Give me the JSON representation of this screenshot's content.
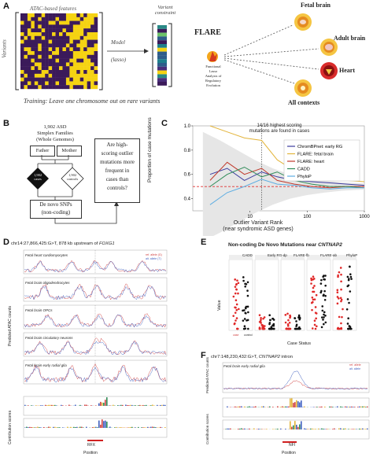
{
  "panelA": {
    "letter": "A",
    "features_label": "ATAC-based features",
    "variants_label": "Variants",
    "model_label": "Model",
    "model_sub": "(lasso)",
    "constraint_label": "Variant constraint",
    "flare_title": "FLARE",
    "flare_desc": [
      "Functional",
      "Lasso",
      "Analysis of",
      "Regulatory",
      "Evolution"
    ],
    "contexts": [
      "Fetal brain",
      "Adult brain",
      "Heart",
      "All contexts"
    ],
    "training": "Training: Leave one chromosome out on rare variants"
  },
  "panelB": {
    "letter": "B",
    "cohort": [
      "1,902 ASD",
      "Simplex Families",
      "(Whole Genomes)"
    ],
    "father": "Father",
    "mother": "Mother",
    "cases": [
      "1,902",
      "cases"
    ],
    "controls": [
      "1,902",
      "controls"
    ],
    "snps": [
      "De novo SNPs",
      "(non-coding)"
    ],
    "question": [
      "Are high-",
      "scoring outlier",
      "mutations more",
      "frequent in",
      "cases than",
      "controls?"
    ]
  },
  "panelC": {
    "letter": "C",
    "annotation": [
      "14/16 highest scoring",
      "mutations are found in cases"
    ],
    "ylabel": "Proportion of case mutations",
    "xlabel": [
      "Outlier Variant Rank",
      "(near syndromic ASD genes)"
    ],
    "chart_data": {
      "type": "line",
      "xscale": "log",
      "xlim": [
        1,
        1000
      ],
      "ylim": [
        0.3,
        1.0
      ],
      "x_ticks": [
        "10",
        "100",
        "1000"
      ],
      "y_ticks": [
        "0.4",
        "0.6",
        "0.8",
        "1.0"
      ],
      "legend_position": "center-right",
      "reference_line": 0.5,
      "series": [
        {
          "name": "ChromBPnet: early RG",
          "color": "#3b3b9e",
          "x": [
            2,
            4,
            8,
            16,
            30,
            60,
            120,
            250,
            500,
            1000
          ],
          "values": [
            0.6,
            0.65,
            0.55,
            0.62,
            0.58,
            0.55,
            0.54,
            0.53,
            0.52,
            0.51
          ]
        },
        {
          "name": "FLARE: fetal brain",
          "color": "#e3b43a",
          "x": [
            2,
            4,
            8,
            16,
            30,
            60,
            120,
            250,
            500,
            1000
          ],
          "values": [
            1.0,
            0.95,
            0.9,
            0.88,
            0.72,
            0.63,
            0.58,
            0.56,
            0.55,
            0.54
          ]
        },
        {
          "name": "FLARE: heart",
          "color": "#c0392b",
          "x": [
            2,
            4,
            8,
            16,
            30,
            60,
            120,
            250,
            500,
            1000
          ],
          "values": [
            0.55,
            0.7,
            0.6,
            0.65,
            0.55,
            0.52,
            0.5,
            0.49,
            0.5,
            0.5
          ]
        },
        {
          "name": "CADD",
          "color": "#2e8b57",
          "x": [
            2,
            4,
            8,
            16,
            30,
            60,
            120,
            250,
            500,
            1000
          ],
          "values": [
            0.5,
            0.6,
            0.66,
            0.58,
            0.62,
            0.55,
            0.52,
            0.5,
            0.5,
            0.49
          ]
        },
        {
          "name": "PhyloP",
          "color": "#5dade2",
          "x": [
            2,
            4,
            8,
            16,
            30,
            60,
            120,
            250,
            500,
            1000
          ],
          "values": [
            0.35,
            0.45,
            0.5,
            0.56,
            0.52,
            0.51,
            0.49,
            0.48,
            0.49,
            0.49
          ]
        }
      ]
    }
  },
  "panelD": {
    "letter": "D",
    "title_prefix": "chr14:27,866,425:G>T, 878 kb upstream of ",
    "gene": "FOXG1",
    "tracks": [
      "Fetal heart cardiomyocytes",
      "Fetal brain oligodendrocytes",
      "Fetal brain OPCs",
      "Fetal brain circulatory neurons",
      "Fetal brain early radial glia"
    ],
    "ylabel": "Predicted ATAC counts",
    "contrib_label": "Contribution scores",
    "motif": "RFX",
    "xlabel": "Position",
    "legend": [
      "ref. allele (G)",
      "alt. allele (T)"
    ]
  },
  "panelE": {
    "letter": "E",
    "title_prefix": "Non-coding De Novo Mutations near ",
    "gene": "CNTNAP2",
    "facets": [
      "CADD",
      "Early RG-dp",
      "FLARE-fb",
      "FLARE-ab",
      "PhyloP"
    ],
    "ylabel": "Value",
    "xlabel": "Case Status",
    "status_labels": [
      "case",
      "control"
    ]
  },
  "panelF": {
    "letter": "F",
    "title_prefix": "chr7:148,230,432:G>T, ",
    "gene": "CNTNAP2",
    "title_suffix": " intron",
    "track": "Fetal brain early radial glia",
    "ylabel": "Predicted ATAC counts",
    "contrib_label": "Contribution scores",
    "motif": "NFI",
    "xlabel": "Position",
    "legend": [
      "ref. allele",
      "alt. allele"
    ]
  },
  "colors": {
    "heatmap_dark": "#3b1a5a",
    "heatmap_bright": "#f5d312",
    "ref": "#d04040",
    "alt": "#4060c0"
  }
}
